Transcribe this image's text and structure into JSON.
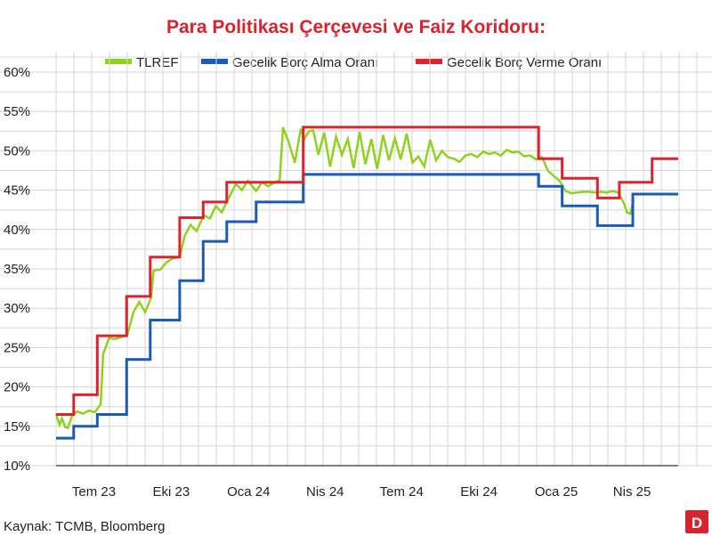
{
  "chart_data": {
    "type": "line",
    "title": "Para Politikası Çerçevesi ve Faiz Koridoru:",
    "xlabel": "",
    "ylabel": "",
    "yticks": [
      "60%",
      "55%",
      "50%",
      "45%",
      "40%",
      "35%",
      "30%",
      "25%",
      "20%",
      "15%",
      "10%"
    ],
    "ylim": [
      10,
      60
    ],
    "xticks": [
      "Tem 23",
      "Eki 23",
      "Oca 24",
      "Nis 24",
      "Tem 24",
      "Eki 24",
      "Oca 25",
      "Nis 25"
    ],
    "xlim": [
      "2023-06-01",
      "2025-06-10"
    ],
    "grid": true,
    "legend_position": "top",
    "series": [
      {
        "name": "TLREF",
        "color": "#8ed21e",
        "x": [
          "2023-06-01",
          "2023-06-05",
          "2023-06-08",
          "2023-06-12",
          "2023-06-15",
          "2023-06-20",
          "2023-06-26",
          "2023-07-03",
          "2023-07-10",
          "2023-07-17",
          "2023-07-24",
          "2023-07-27",
          "2023-08-03",
          "2023-08-10",
          "2023-08-17",
          "2023-08-25",
          "2023-09-01",
          "2023-09-08",
          "2023-09-15",
          "2023-09-22",
          "2023-09-25",
          "2023-10-03",
          "2023-10-10",
          "2023-10-17",
          "2023-10-26",
          "2023-11-01",
          "2023-11-08",
          "2023-11-15",
          "2023-11-24",
          "2023-12-01",
          "2023-12-08",
          "2023-12-15",
          "2023-12-22",
          "2024-01-01",
          "2024-01-08",
          "2024-01-15",
          "2024-01-25",
          "2024-02-01",
          "2024-02-08",
          "2024-02-15",
          "2024-02-22",
          "2024-02-26",
          "2024-03-04",
          "2024-03-11",
          "2024-03-18",
          "2024-03-22",
          "2024-03-28",
          "2024-04-02",
          "2024-04-08",
          "2024-04-15",
          "2024-04-22",
          "2024-04-29",
          "2024-05-06",
          "2024-05-13",
          "2024-05-20",
          "2024-05-27",
          "2024-06-03",
          "2024-06-10",
          "2024-06-17",
          "2024-06-24",
          "2024-07-01",
          "2024-07-08",
          "2024-07-15",
          "2024-07-22",
          "2024-07-29",
          "2024-08-05",
          "2024-08-12",
          "2024-08-19",
          "2024-08-26",
          "2024-09-02",
          "2024-09-09",
          "2024-09-16",
          "2024-09-23",
          "2024-09-30",
          "2024-10-07",
          "2024-10-14",
          "2024-10-21",
          "2024-10-28",
          "2024-11-04",
          "2024-11-11",
          "2024-11-18",
          "2024-11-25",
          "2024-12-02",
          "2024-12-09",
          "2024-12-16",
          "2024-12-23",
          "2024-12-30",
          "2025-01-06",
          "2025-01-13",
          "2025-01-20",
          "2025-01-27",
          "2025-02-03",
          "2025-02-10",
          "2025-02-17",
          "2025-02-24",
          "2025-03-03",
          "2025-03-10",
          "2025-03-17",
          "2025-03-24",
          "2025-03-31",
          "2025-04-07",
          "2025-04-10",
          "2025-04-14",
          "2025-04-18"
        ],
        "values": [
          16.5,
          15.2,
          16.0,
          14.9,
          14.8,
          16.3,
          16.9,
          16.6,
          17.0,
          16.8,
          17.8,
          24.2,
          26.2,
          26.1,
          26.3,
          26.7,
          29.5,
          30.8,
          29.5,
          31.3,
          34.8,
          34.9,
          35.8,
          36.3,
          36.5,
          39.2,
          40.6,
          39.8,
          41.8,
          41.4,
          43.0,
          42.2,
          43.7,
          45.8,
          45.0,
          46.2,
          44.9,
          46.0,
          45.5,
          45.9,
          46.3,
          53.0,
          51.0,
          48.5,
          52.8,
          51.5,
          52.5,
          52.6,
          49.5,
          52.3,
          48.0,
          51.8,
          49.5,
          51.5,
          47.8,
          52.4,
          48.3,
          51.5,
          47.7,
          52.0,
          48.8,
          51.6,
          48.9,
          52.2,
          48.5,
          49.3,
          48.0,
          51.4,
          48.8,
          50.0,
          49.2,
          49.0,
          48.6,
          49.4,
          49.6,
          49.2,
          49.9,
          49.6,
          49.8,
          49.4,
          50.1,
          49.8,
          49.9,
          49.3,
          49.4,
          48.9,
          49.2,
          47.5,
          46.8,
          46.2,
          44.9,
          44.6,
          44.7,
          44.8,
          44.8,
          44.7,
          44.8,
          44.7,
          44.9,
          44.7,
          43.2,
          42.2,
          42.0,
          43.8
        ]
      },
      {
        "name": "Gecelik Borç Alma Oranı",
        "color": "#1a5bb5",
        "step": true,
        "x": [
          "2023-06-01",
          "2023-06-22",
          "2023-07-20",
          "2023-08-24",
          "2023-09-21",
          "2023-10-26",
          "2023-11-23",
          "2023-12-21",
          "2024-01-25",
          "2024-03-21",
          "2024-12-26",
          "2025-01-23",
          "2025-03-06",
          "2025-04-17",
          "2025-05-10",
          "2025-06-10"
        ],
        "values": [
          13.5,
          15.0,
          16.5,
          23.5,
          28.5,
          33.5,
          38.5,
          41.0,
          43.5,
          47.0,
          45.5,
          43.0,
          40.5,
          44.5,
          44.5,
          44.5
        ]
      },
      {
        "name": "Gecelik Borç Verme Oranı",
        "color": "#e3212b",
        "step": true,
        "x": [
          "2023-06-01",
          "2023-06-22",
          "2023-07-20",
          "2023-08-24",
          "2023-09-21",
          "2023-10-26",
          "2023-11-23",
          "2023-12-21",
          "2024-01-25",
          "2024-03-21",
          "2024-12-26",
          "2025-01-23",
          "2025-03-06",
          "2025-04-01",
          "2025-04-17",
          "2025-05-10",
          "2025-06-10"
        ],
        "values": [
          16.5,
          19.0,
          26.5,
          31.5,
          36.5,
          41.5,
          43.5,
          46.0,
          46.0,
          53.0,
          49.0,
          46.5,
          44.0,
          46.0,
          46.0,
          49.0,
          49.0
        ]
      }
    ]
  },
  "source_note": "Kaynak: TCMB, Bloomberg",
  "badge": "D"
}
